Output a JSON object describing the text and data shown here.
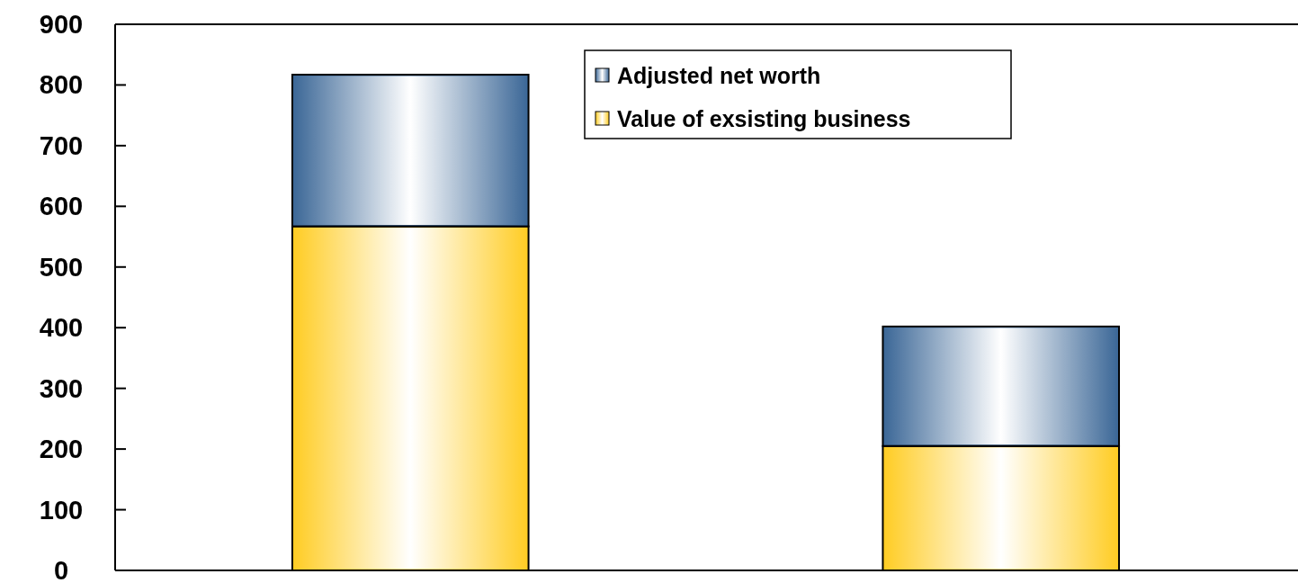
{
  "chart_data": {
    "type": "bar",
    "stacked": true,
    "categories": [
      null,
      null
    ],
    "series": [
      {
        "name": "Value of exsisting business",
        "color": "#ffcc22",
        "values": [
          567,
          205
        ]
      },
      {
        "name": "Adjusted net worth",
        "color": "#3a6696",
        "values": [
          250,
          197
        ]
      }
    ],
    "ylim": [
      0,
      900
    ],
    "yticks": [
      0,
      100,
      200,
      300,
      400,
      500,
      600,
      700,
      800,
      900
    ],
    "grid": false,
    "legend": "top right"
  }
}
